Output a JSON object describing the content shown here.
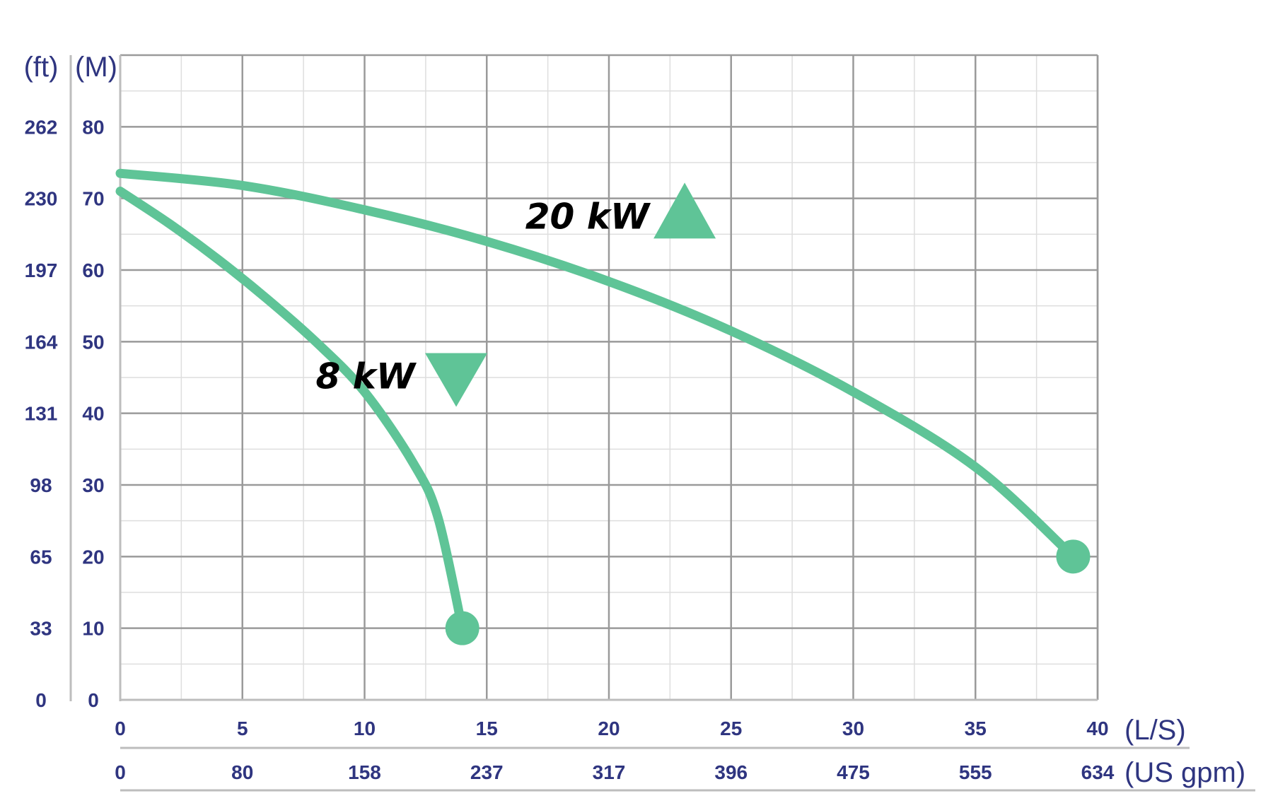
{
  "chart_data": {
    "type": "line",
    "x_axis": {
      "unit_label": "(L/S)",
      "range": [
        0,
        40
      ],
      "ticks": [
        0,
        5,
        10,
        15,
        20,
        25,
        30,
        35,
        40
      ],
      "tick_labels": [
        "0",
        "5",
        "10",
        "15",
        "20",
        "25",
        "30",
        "35",
        "40"
      ]
    },
    "x_axis_secondary": {
      "unit_label": "(US gpm)",
      "tick_labels": [
        "0",
        "80",
        "158",
        "237",
        "317",
        "396",
        "475",
        "555",
        "634"
      ]
    },
    "y_axis": {
      "unit_label": "(M)",
      "range": [
        0,
        90
      ],
      "ticks": [
        0,
        10,
        20,
        30,
        40,
        50,
        60,
        70,
        80
      ],
      "tick_labels": [
        "0",
        "10",
        "20",
        "30",
        "40",
        "50",
        "60",
        "70",
        "80"
      ]
    },
    "y_axis_secondary": {
      "unit_label": "(ft)",
      "tick_labels": [
        "0",
        "33",
        "65",
        "98",
        "131",
        "164",
        "197",
        "230",
        "262"
      ]
    },
    "grid": true,
    "colors": {
      "curve": "#5fc497",
      "text": "#2f3580",
      "label": "#000000"
    },
    "series": [
      {
        "name": "20 kW",
        "marker": "triangle-up",
        "points": [
          [
            0,
            73.5
          ],
          [
            5,
            71.8
          ],
          [
            10,
            68.4
          ],
          [
            15,
            64
          ],
          [
            20,
            58.4
          ],
          [
            25,
            51.5
          ],
          [
            30,
            43
          ],
          [
            35,
            32.5
          ],
          [
            39,
            20
          ]
        ]
      },
      {
        "name": "8 kW",
        "marker": "triangle-down",
        "points": [
          [
            0,
            71
          ],
          [
            2,
            66.5
          ],
          [
            4,
            61.5
          ],
          [
            6,
            56
          ],
          [
            8,
            50
          ],
          [
            10,
            43
          ],
          [
            12,
            33
          ],
          [
            13,
            25.5
          ],
          [
            14,
            10
          ]
        ]
      }
    ]
  }
}
